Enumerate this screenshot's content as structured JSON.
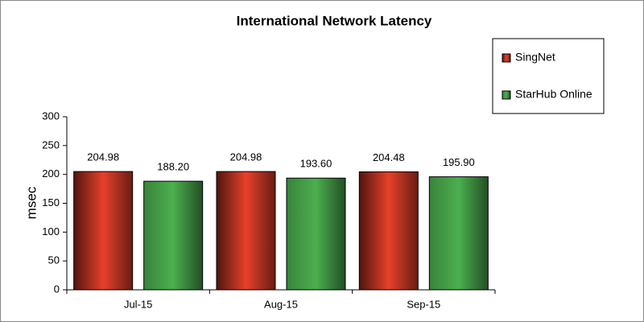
{
  "chart_data": {
    "type": "bar",
    "title": "International Network Latency",
    "y_label": "msec",
    "categories": [
      "Jul-15",
      "Aug-15",
      "Sep-15"
    ],
    "series": [
      {
        "name": "SingNet",
        "color": "#e8402a",
        "values": [
          204.98,
          204.98,
          204.48
        ],
        "value_labels": [
          "204.98",
          "204.98",
          "204.48"
        ]
      },
      {
        "name": "StarHub Online",
        "color": "#4caf4f",
        "values": [
          188.2,
          193.6,
          195.9
        ],
        "value_labels": [
          "188.20",
          "193.60",
          "195.90"
        ]
      }
    ],
    "ylim": [
      0,
      300
    ],
    "yticks": [
      0,
      50,
      100,
      150,
      200,
      250,
      300
    ],
    "grid": false,
    "legend": "top-right"
  }
}
